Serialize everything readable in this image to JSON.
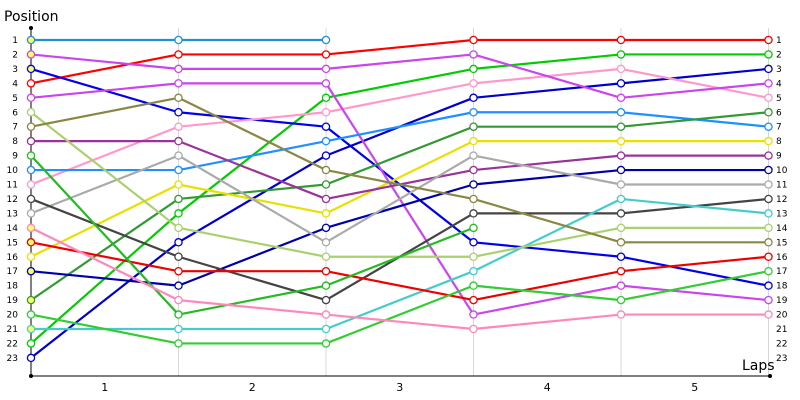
{
  "chart_data": {
    "type": "line",
    "title": "",
    "ylabel": "Position",
    "xlabel": "Laps",
    "y_ticks": [
      "1",
      "2",
      "3",
      "4",
      "5",
      "6",
      "7",
      "8",
      "9",
      "10",
      "11",
      "12",
      "13",
      "14",
      "15",
      "16",
      "17",
      "18",
      "19",
      "20",
      "21",
      "22",
      "23"
    ],
    "x_tick_labels": [
      "1",
      "2",
      "3",
      "4",
      "5"
    ],
    "x_points": [
      0,
      1,
      2,
      3,
      4,
      5
    ],
    "ylim": [
      1,
      23
    ],
    "y_inverted": true,
    "grid": "vertical",
    "series": [
      {
        "color": "#1e90d8",
        "values": [
          1,
          1,
          1,
          null,
          null,
          null
        ]
      },
      {
        "color": "#ff0000",
        "values": [
          4,
          2,
          2,
          1,
          1,
          1
        ]
      },
      {
        "color": "#00cc00",
        "values": [
          22,
          13,
          5,
          3,
          2,
          2
        ]
      },
      {
        "color": "#0000ee",
        "values": [
          3,
          6,
          7,
          15,
          16,
          18
        ]
      },
      {
        "color": "#0000cc",
        "values": [
          23,
          15,
          9,
          5,
          4,
          3
        ]
      },
      {
        "color": "#ff99cc",
        "values": [
          11,
          7,
          6,
          4,
          3,
          5
        ]
      },
      {
        "color": "#cc44ee",
        "values": [
          2,
          3,
          3,
          2,
          5,
          4
        ]
      },
      {
        "color": "#cc44ee",
        "values": [
          5,
          4,
          4,
          20,
          18,
          19
        ]
      },
      {
        "color": "#1e90ff",
        "values": [
          10,
          10,
          8,
          6,
          6,
          7
        ]
      },
      {
        "color": "#339933",
        "values": [
          19,
          12,
          11,
          7,
          7,
          6
        ]
      },
      {
        "color": "#e8e000",
        "values": [
          16,
          11,
          13,
          8,
          8,
          8
        ]
      },
      {
        "color": "#993399",
        "values": [
          8,
          8,
          12,
          10,
          9,
          9
        ]
      },
      {
        "color": "#0000aa",
        "values": [
          17,
          18,
          14,
          11,
          10,
          10
        ]
      },
      {
        "color": "#aaaaaa",
        "values": [
          13,
          9,
          15,
          9,
          11,
          11
        ]
      },
      {
        "color": "#444444",
        "values": [
          12,
          16,
          19,
          13,
          13,
          12
        ]
      },
      {
        "color": "#44cccc",
        "values": [
          21,
          21,
          21,
          17,
          12,
          13
        ]
      },
      {
        "color": "#aad070",
        "values": [
          6,
          14,
          16,
          16,
          14,
          14
        ]
      },
      {
        "color": "#888844",
        "values": [
          7,
          5,
          10,
          12,
          15,
          15
        ]
      },
      {
        "color": "#ee0000",
        "values": [
          15,
          17,
          17,
          19,
          17,
          16
        ]
      },
      {
        "color": "#22bb22",
        "values": [
          9,
          20,
          18,
          14,
          null,
          null
        ]
      },
      {
        "color": "#33cc33",
        "values": [
          20,
          22,
          22,
          18,
          19,
          17
        ]
      },
      {
        "color": "#ff88bb",
        "values": [
          14,
          19,
          20,
          21,
          20,
          20
        ]
      }
    ]
  }
}
